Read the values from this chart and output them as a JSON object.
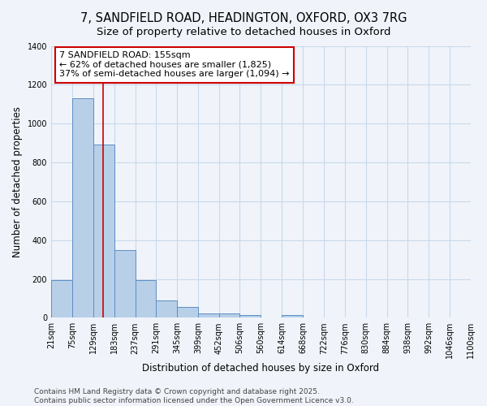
{
  "title_line1": "7, SANDFIELD ROAD, HEADINGTON, OXFORD, OX3 7RG",
  "title_line2": "Size of property relative to detached houses in Oxford",
  "xlabel": "Distribution of detached houses by size in Oxford",
  "ylabel": "Number of detached properties",
  "bin_edges": [
    21,
    75,
    129,
    183,
    237,
    291,
    345,
    399,
    452,
    506,
    560,
    614,
    668,
    722,
    776,
    830,
    884,
    938,
    992,
    1046,
    1100
  ],
  "bar_heights": [
    193,
    1130,
    893,
    350,
    193,
    88,
    55,
    22,
    22,
    14,
    0,
    14,
    0,
    0,
    0,
    0,
    0,
    0,
    0,
    0
  ],
  "bar_color": "#b8cfe8",
  "bar_edge_color": "#5b8ec4",
  "background_color": "#f0f4fa",
  "grid_color": "#c8d8ec",
  "property_line_x": 155,
  "property_line_color": "#cc0000",
  "annotation_line1": "7 SANDFIELD ROAD: 155sqm",
  "annotation_line2": "← 62% of detached houses are smaller (1,825)",
  "annotation_line3": "37% of semi-detached houses are larger (1,094) →",
  "annotation_box_color": "#ffffff",
  "annotation_box_edge_color": "#cc0000",
  "ylim": [
    0,
    1400
  ],
  "yticks": [
    0,
    200,
    400,
    600,
    800,
    1000,
    1200,
    1400
  ],
  "tick_labels": [
    "21sqm",
    "75sqm",
    "129sqm",
    "183sqm",
    "237sqm",
    "291sqm",
    "345sqm",
    "399sqm",
    "452sqm",
    "506sqm",
    "560sqm",
    "614sqm",
    "668sqm",
    "722sqm",
    "776sqm",
    "830sqm",
    "884sqm",
    "938sqm",
    "992sqm",
    "1046sqm",
    "1100sqm"
  ],
  "footer_text": "Contains HM Land Registry data © Crown copyright and database right 2025.\nContains public sector information licensed under the Open Government Licence v3.0.",
  "title_fontsize": 10.5,
  "subtitle_fontsize": 9.5,
  "tick_fontsize": 7,
  "axis_label_fontsize": 8.5,
  "annotation_fontsize": 8,
  "footer_fontsize": 6.5
}
